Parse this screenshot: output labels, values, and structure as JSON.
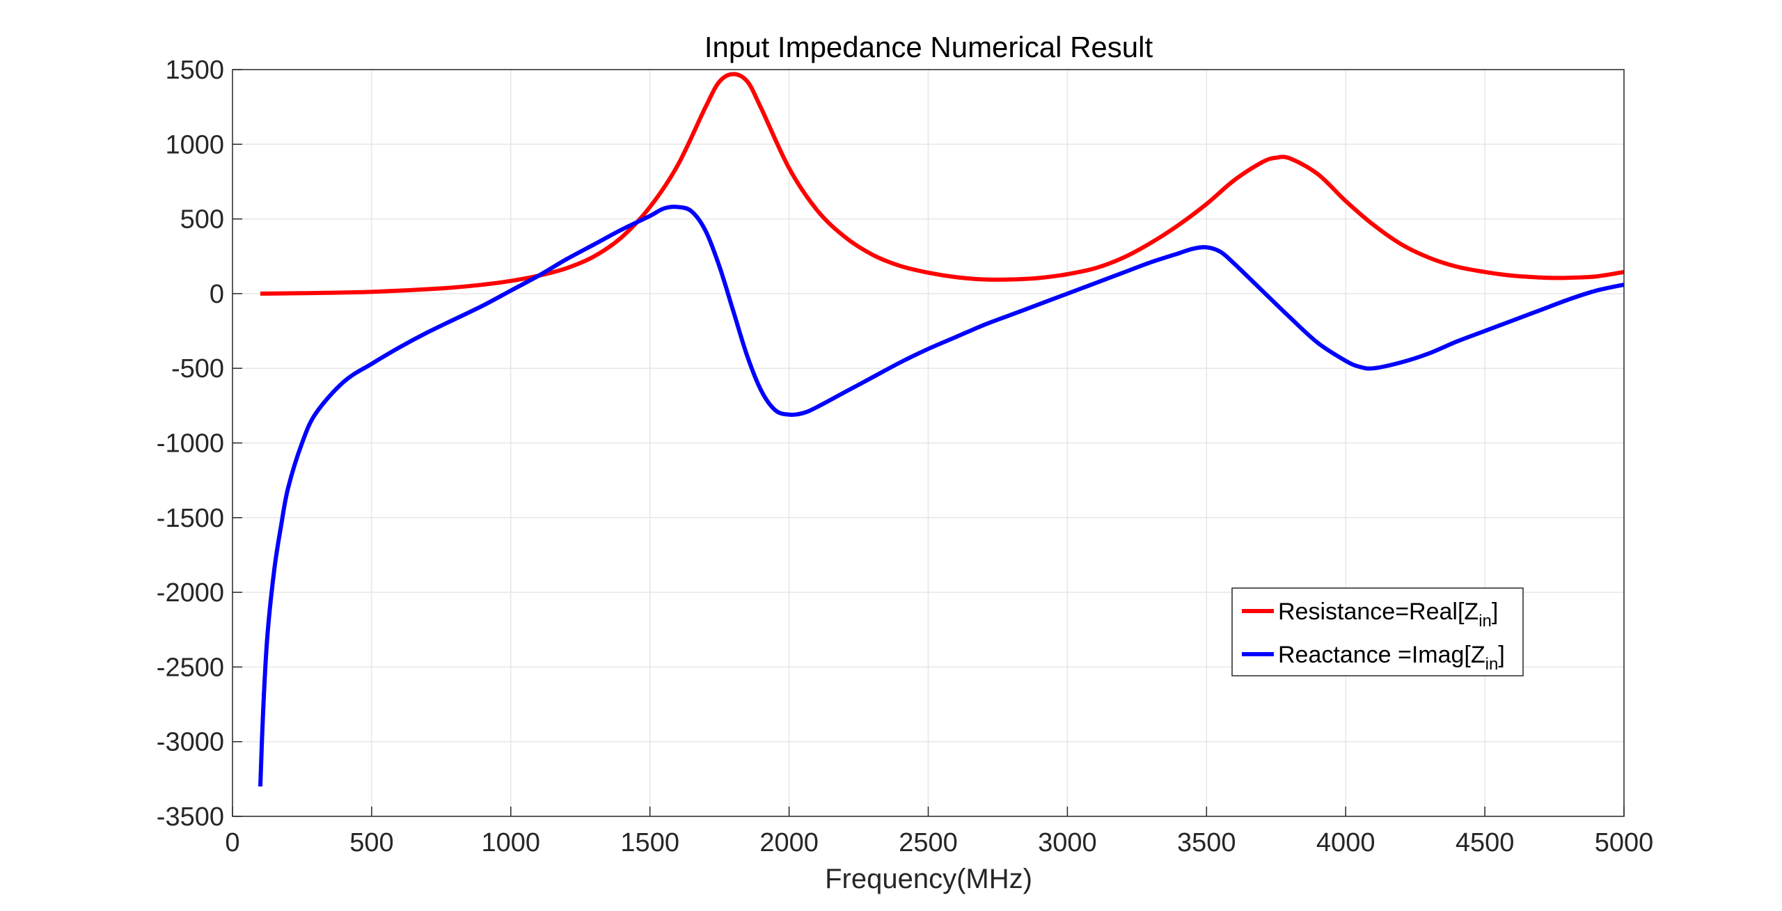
{
  "chart_data": {
    "type": "line",
    "title": "Input Impedance Numerical Result",
    "xlabel": "Frequency(MHz)",
    "ylabel": "",
    "xlim": [
      0,
      5000
    ],
    "ylim": [
      -3500,
      1500
    ],
    "xticks": [
      0,
      500,
      1000,
      1500,
      2000,
      2500,
      3000,
      3500,
      4000,
      4500,
      5000
    ],
    "yticks": [
      1500,
      1000,
      500,
      0,
      -500,
      -1000,
      -1500,
      -2000,
      -2500,
      -3000,
      -3500
    ],
    "grid": true,
    "legend_position": "right",
    "series": [
      {
        "name_main": "Resistance=Real[Z",
        "name_sub": "in",
        "name_close": "]",
        "color": "#ff0000",
        "points": [
          [
            100,
            0
          ],
          [
            250,
            3
          ],
          [
            500,
            12
          ],
          [
            750,
            35
          ],
          [
            900,
            60
          ],
          [
            1000,
            85
          ],
          [
            1100,
            120
          ],
          [
            1200,
            170
          ],
          [
            1300,
            250
          ],
          [
            1400,
            380
          ],
          [
            1500,
            580
          ],
          [
            1600,
            860
          ],
          [
            1700,
            1250
          ],
          [
            1750,
            1420
          ],
          [
            1800,
            1470
          ],
          [
            1850,
            1420
          ],
          [
            1900,
            1240
          ],
          [
            2000,
            840
          ],
          [
            2100,
            560
          ],
          [
            2200,
            380
          ],
          [
            2300,
            260
          ],
          [
            2400,
            185
          ],
          [
            2500,
            140
          ],
          [
            2600,
            110
          ],
          [
            2700,
            95
          ],
          [
            2800,
            95
          ],
          [
            2900,
            105
          ],
          [
            3000,
            130
          ],
          [
            3100,
            170
          ],
          [
            3200,
            240
          ],
          [
            3300,
            340
          ],
          [
            3400,
            460
          ],
          [
            3500,
            600
          ],
          [
            3600,
            760
          ],
          [
            3700,
            880
          ],
          [
            3750,
            910
          ],
          [
            3800,
            905
          ],
          [
            3900,
            800
          ],
          [
            4000,
            620
          ],
          [
            4100,
            460
          ],
          [
            4200,
            330
          ],
          [
            4300,
            240
          ],
          [
            4400,
            180
          ],
          [
            4500,
            145
          ],
          [
            4600,
            120
          ],
          [
            4700,
            108
          ],
          [
            4750,
            105
          ],
          [
            4800,
            106
          ],
          [
            4900,
            115
          ],
          [
            5000,
            145
          ]
        ]
      },
      {
        "name_main": "Reactance =Imag[Z",
        "name_sub": "in",
        "name_close": "]",
        "color": "#0000ff",
        "points": [
          [
            100,
            -3300
          ],
          [
            110,
            -2800
          ],
          [
            125,
            -2300
          ],
          [
            150,
            -1850
          ],
          [
            175,
            -1550
          ],
          [
            200,
            -1300
          ],
          [
            250,
            -1000
          ],
          [
            300,
            -800
          ],
          [
            400,
            -590
          ],
          [
            500,
            -470
          ],
          [
            600,
            -360
          ],
          [
            700,
            -260
          ],
          [
            800,
            -170
          ],
          [
            900,
            -80
          ],
          [
            1000,
            20
          ],
          [
            1100,
            120
          ],
          [
            1200,
            230
          ],
          [
            1300,
            330
          ],
          [
            1400,
            430
          ],
          [
            1500,
            520
          ],
          [
            1550,
            570
          ],
          [
            1600,
            580
          ],
          [
            1650,
            550
          ],
          [
            1700,
            420
          ],
          [
            1750,
            180
          ],
          [
            1800,
            -120
          ],
          [
            1850,
            -420
          ],
          [
            1900,
            -650
          ],
          [
            1950,
            -780
          ],
          [
            2000,
            -810
          ],
          [
            2050,
            -800
          ],
          [
            2100,
            -760
          ],
          [
            2200,
            -660
          ],
          [
            2300,
            -560
          ],
          [
            2400,
            -460
          ],
          [
            2500,
            -370
          ],
          [
            2600,
            -290
          ],
          [
            2700,
            -210
          ],
          [
            2800,
            -140
          ],
          [
            2900,
            -70
          ],
          [
            3000,
            0
          ],
          [
            3100,
            70
          ],
          [
            3200,
            140
          ],
          [
            3300,
            210
          ],
          [
            3400,
            270
          ],
          [
            3450,
            300
          ],
          [
            3500,
            310
          ],
          [
            3550,
            280
          ],
          [
            3600,
            200
          ],
          [
            3700,
            20
          ],
          [
            3800,
            -160
          ],
          [
            3900,
            -330
          ],
          [
            4000,
            -450
          ],
          [
            4050,
            -490
          ],
          [
            4100,
            -500
          ],
          [
            4200,
            -460
          ],
          [
            4300,
            -400
          ],
          [
            4400,
            -320
          ],
          [
            4500,
            -250
          ],
          [
            4600,
            -180
          ],
          [
            4700,
            -110
          ],
          [
            4800,
            -40
          ],
          [
            4900,
            20
          ],
          [
            5000,
            60
          ]
        ]
      }
    ]
  }
}
